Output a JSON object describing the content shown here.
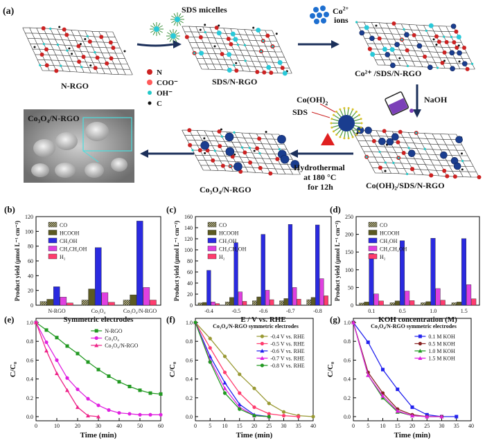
{
  "schematic": {
    "panel": "(a)",
    "label_nrgo": "N-RGO",
    "label_sds_micelles": "SDS micelles",
    "label_sds_nrgo": "SDS/N-RGO",
    "label_co_ions": "Co",
    "label_co_ions_sup": "2+",
    "label_co_ions_2": "ions",
    "label_co_sds_nrgo": "Co²⁺ /SDS/N-RGO",
    "label_naoh": "NaOH",
    "label_coohh": "Co(OH)",
    "label_coohh_sub": "2",
    "label_sds": "SDS",
    "label_cooh_sds_nrgo": "Co(OH)₂/SDS/N-RGO",
    "label_hydro_1": "Hydrothermal",
    "label_hydro_2": "at 180 °C",
    "label_hydro_3": "for 12h",
    "label_product": "Co₃O₄/N-RGO",
    "label_sem": "Co₃O₄/N-RGO",
    "legend_n": "N",
    "legend_coo": "COO⁻",
    "legend_oh": "OH⁻",
    "legend_c": "C",
    "colors": {
      "n": "#cc2222",
      "coo": "#ff4040",
      "oh": "#22c8c8",
      "c": "#111111",
      "sheet": "#2a2a2a"
    }
  },
  "chart_data": [
    {
      "panel": "(b)",
      "type": "bar",
      "ylabel": "Product yield (μmol L⁻¹ cm⁻²)",
      "xlabel": "Symmetric electrodes",
      "categories": [
        "N-RGO",
        "Co₃O₄",
        "Co₃O₄/N-RGO"
      ],
      "ylim": [
        0,
        120
      ],
      "yticks": [
        0,
        20,
        40,
        60,
        80,
        100,
        120
      ],
      "series": [
        {
          "name": "CO",
          "color": "#6b6b3c",
          "values": [
            5,
            7,
            7
          ]
        },
        {
          "name": "HCOOH",
          "color": "#5c5a22",
          "values": [
            8,
            22,
            14
          ]
        },
        {
          "name": "CH₃OH",
          "color": "#2a2ae0",
          "values": [
            25,
            78,
            114
          ]
        },
        {
          "name": "CH₃CH₂OH",
          "color": "#e040e0",
          "values": [
            11,
            17,
            24
          ]
        },
        {
          "name": "H₂",
          "color": "#ff3c6e",
          "values": [
            3,
            4,
            7
          ]
        }
      ]
    },
    {
      "panel": "(c)",
      "type": "bar",
      "ylabel": "Product yield (μmol L⁻¹ cm⁻²)",
      "xlabel": "E / V vs. RHE",
      "categories": [
        "-0.4",
        "-0.5",
        "-0.6",
        "-0.7",
        "-0.8"
      ],
      "ylim": [
        0,
        160
      ],
      "yticks": [
        0,
        20,
        40,
        60,
        80,
        100,
        120,
        140,
        160
      ],
      "series": [
        {
          "name": "CO",
          "color": "#6b6b3c",
          "values": [
            4,
            6,
            8,
            8,
            10
          ]
        },
        {
          "name": "HCOOH",
          "color": "#5c5a22",
          "values": [
            5,
            14,
            15,
            12,
            14
          ]
        },
        {
          "name": "CH₃OH",
          "color": "#2a2ae0",
          "values": [
            63,
            113,
            128,
            146,
            145
          ]
        },
        {
          "name": "CH₃CH₂OH",
          "color": "#e040e0",
          "values": [
            6,
            24,
            27,
            32,
            48
          ]
        },
        {
          "name": "H₂",
          "color": "#ff3c6e",
          "values": [
            3,
            7,
            10,
            11,
            17
          ]
        }
      ]
    },
    {
      "panel": "(d)",
      "type": "bar",
      "ylabel": "Product yield (μmol L⁻¹ cm⁻²)",
      "xlabel": "KOH concentration (M)",
      "categories": [
        "0.1",
        "0.5",
        "1.0",
        "1.5"
      ],
      "ylim": [
        0,
        250
      ],
      "yticks": [
        0,
        50,
        100,
        150,
        200,
        250
      ],
      "series": [
        {
          "name": "CO",
          "color": "#6b6b3c",
          "values": [
            6,
            7,
            7,
            7
          ]
        },
        {
          "name": "HCOOH",
          "color": "#5c5a22",
          "values": [
            9,
            12,
            10,
            9
          ]
        },
        {
          "name": "CH₃OH",
          "color": "#2a2ae0",
          "values": [
            146,
            182,
            189,
            188
          ]
        },
        {
          "name": "CH₃CH₂OH",
          "color": "#e040e0",
          "values": [
            32,
            40,
            47,
            58
          ]
        },
        {
          "name": "H₂",
          "color": "#ff3c6e",
          "values": [
            12,
            13,
            14,
            18
          ]
        }
      ]
    },
    {
      "panel": "(e)",
      "type": "line",
      "ylabel": "C/C₀",
      "xlabel": "Time (min)",
      "xlim": [
        0,
        60
      ],
      "ylim": [
        0,
        1.0
      ],
      "xticks": [
        0,
        10,
        20,
        30,
        40,
        50,
        60
      ],
      "yticks": [
        0.0,
        0.2,
        0.4,
        0.6,
        0.8,
        1.0
      ],
      "series": [
        {
          "name": "N-RGO",
          "color": "#229922",
          "marker": "square",
          "x": [
            0,
            5,
            10,
            15,
            20,
            25,
            30,
            35,
            40,
            45,
            50,
            55,
            60
          ],
          "y": [
            1.0,
            0.92,
            0.84,
            0.75,
            0.67,
            0.58,
            0.5,
            0.43,
            0.37,
            0.32,
            0.28,
            0.25,
            0.24
          ]
        },
        {
          "name": "Co₃O₄",
          "color": "#e020e0",
          "marker": "circle",
          "x": [
            0,
            5,
            10,
            15,
            20,
            25,
            30,
            35,
            40,
            45,
            50,
            55,
            60
          ],
          "y": [
            1.0,
            0.79,
            0.6,
            0.41,
            0.29,
            0.19,
            0.12,
            0.07,
            0.04,
            0.03,
            0.02,
            0.02,
            0.02
          ]
        },
        {
          "name": "Co₃O₄/N-RGO",
          "color": "#ee2288",
          "marker": "triangle",
          "x": [
            0,
            5,
            10,
            15,
            20,
            25,
            30
          ],
          "y": [
            1.0,
            0.7,
            0.46,
            0.28,
            0.1,
            0.01,
            0.0
          ]
        }
      ]
    },
    {
      "panel": "(f)",
      "type": "line",
      "title": "Co₃O₄/N-RGO symmetric electrodes",
      "ylabel": "C/C₀",
      "xlabel": "Time (min)",
      "xlim": [
        0,
        40
      ],
      "ylim": [
        0,
        1.0
      ],
      "xticks": [
        0,
        5,
        10,
        15,
        20,
        25,
        30,
        35,
        40
      ],
      "yticks": [
        0.0,
        0.2,
        0.4,
        0.6,
        0.8,
        1.0
      ],
      "series": [
        {
          "name": "-0.4 V vs. RHE",
          "color": "#999933",
          "marker": "circle",
          "x": [
            0,
            5,
            10,
            15,
            20,
            25,
            30,
            35,
            40
          ],
          "y": [
            1.0,
            0.83,
            0.64,
            0.45,
            0.3,
            0.14,
            0.05,
            0.01,
            0.0
          ]
        },
        {
          "name": "-0.5 V vs. RHE",
          "color": "#ff3c6e",
          "marker": "circle",
          "x": [
            0,
            5,
            10,
            15,
            20,
            25,
            30,
            35
          ],
          "y": [
            1.0,
            0.73,
            0.47,
            0.25,
            0.1,
            0.03,
            0.01,
            0.0
          ]
        },
        {
          "name": "-0.6 V vs. RHE",
          "color": "#2222ee",
          "marker": "triangle",
          "x": [
            0,
            5,
            10,
            15,
            20,
            25
          ],
          "y": [
            1.0,
            0.64,
            0.36,
            0.13,
            0.02,
            0.0
          ]
        },
        {
          "name": "-0.7 V vs. RHE",
          "color": "#e020e0",
          "marker": "triangle",
          "x": [
            0,
            5,
            10,
            15,
            20,
            25
          ],
          "y": [
            1.0,
            0.6,
            0.3,
            0.1,
            0.01,
            0.0
          ]
        },
        {
          "name": "-0.8 V vs. RHE",
          "color": "#229922",
          "marker": "circle",
          "x": [
            0,
            5,
            10,
            15,
            20,
            25
          ],
          "y": [
            1.0,
            0.58,
            0.25,
            0.08,
            0.01,
            0.0
          ]
        }
      ]
    },
    {
      "panel": "(g)",
      "type": "line",
      "title": "Co₃O₄/N-RGO symmetric electrodes",
      "ylabel": "C/C₀",
      "xlabel": "Time (min)",
      "xlim": [
        0,
        40
      ],
      "ylim": [
        0,
        1.0
      ],
      "xticks": [
        0,
        5,
        10,
        15,
        20,
        25,
        30,
        35,
        40
      ],
      "yticks": [
        0.0,
        0.2,
        0.4,
        0.6,
        0.8,
        1.0
      ],
      "series": [
        {
          "name": "0.1 M KOH",
          "color": "#2222ee",
          "marker": "square",
          "x": [
            0,
            5,
            10,
            15,
            20,
            25,
            30,
            35
          ],
          "y": [
            1.0,
            0.79,
            0.5,
            0.29,
            0.1,
            0.02,
            0.0,
            0.0
          ]
        },
        {
          "name": "0.5 M KOH",
          "color": "#882222",
          "marker": "circle",
          "x": [
            0,
            5,
            10,
            15,
            20,
            25,
            30
          ],
          "y": [
            1.0,
            0.47,
            0.25,
            0.08,
            0.02,
            0.0,
            0.0
          ]
        },
        {
          "name": "1.0 M KOH",
          "color": "#229922",
          "marker": "triangle",
          "x": [
            0,
            5,
            10,
            15,
            20,
            25,
            30
          ],
          "y": [
            1.0,
            0.44,
            0.2,
            0.05,
            0.01,
            0.0,
            0.0
          ]
        },
        {
          "name": "1.5 M KOH",
          "color": "#e020e0",
          "marker": "triangle",
          "x": [
            0,
            5,
            10,
            15,
            20,
            25,
            30
          ],
          "y": [
            1.0,
            0.44,
            0.22,
            0.06,
            0.01,
            0.0,
            0.0
          ]
        }
      ]
    }
  ]
}
